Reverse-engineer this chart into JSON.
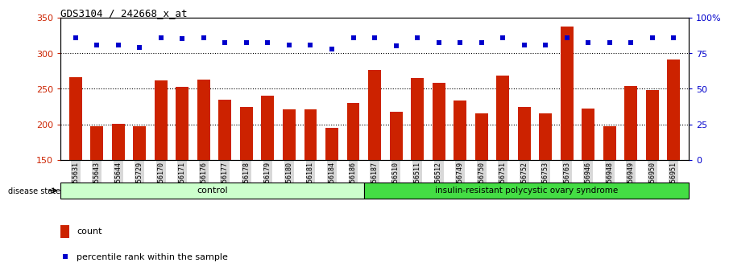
{
  "title": "GDS3104 / 242668_x_at",
  "samples": [
    "GSM155631",
    "GSM155643",
    "GSM155644",
    "GSM155729",
    "GSM156170",
    "GSM156171",
    "GSM156176",
    "GSM156177",
    "GSM156178",
    "GSM156179",
    "GSM156180",
    "GSM156181",
    "GSM156184",
    "GSM156186",
    "GSM156187",
    "GSM156510",
    "GSM156511",
    "GSM156512",
    "GSM156749",
    "GSM156750",
    "GSM156751",
    "GSM156752",
    "GSM156753",
    "GSM156763",
    "GSM156946",
    "GSM156948",
    "GSM156949",
    "GSM156950",
    "GSM156951"
  ],
  "bar_values": [
    266,
    197,
    201,
    197,
    262,
    253,
    263,
    235,
    224,
    240,
    221,
    221,
    195,
    230,
    276,
    218,
    265,
    258,
    234,
    215,
    269,
    225,
    215,
    338,
    222,
    197,
    254,
    248,
    291
  ],
  "dot_values": [
    322,
    311,
    311,
    308,
    322,
    320,
    322,
    315,
    315,
    315,
    311,
    311,
    306,
    322,
    322,
    310,
    322,
    315,
    315,
    315,
    322,
    311,
    311,
    322,
    315,
    315,
    315,
    322,
    322
  ],
  "control_count": 14,
  "disease_count": 15,
  "control_label": "control",
  "disease_label": "insulin-resistant polycystic ovary syndrome",
  "disease_state_label": "disease state",
  "ymin": 150,
  "ymax": 350,
  "yticks": [
    150,
    200,
    250,
    300,
    350
  ],
  "y2ticks_label": [
    "0",
    "25",
    "50",
    "75",
    "100%"
  ],
  "bar_color": "#cc2200",
  "dot_color": "#0000cc",
  "control_bg": "#ccffcc",
  "disease_bg": "#44dd44",
  "legend_count": "count",
  "legend_pct": "percentile rank within the sample"
}
